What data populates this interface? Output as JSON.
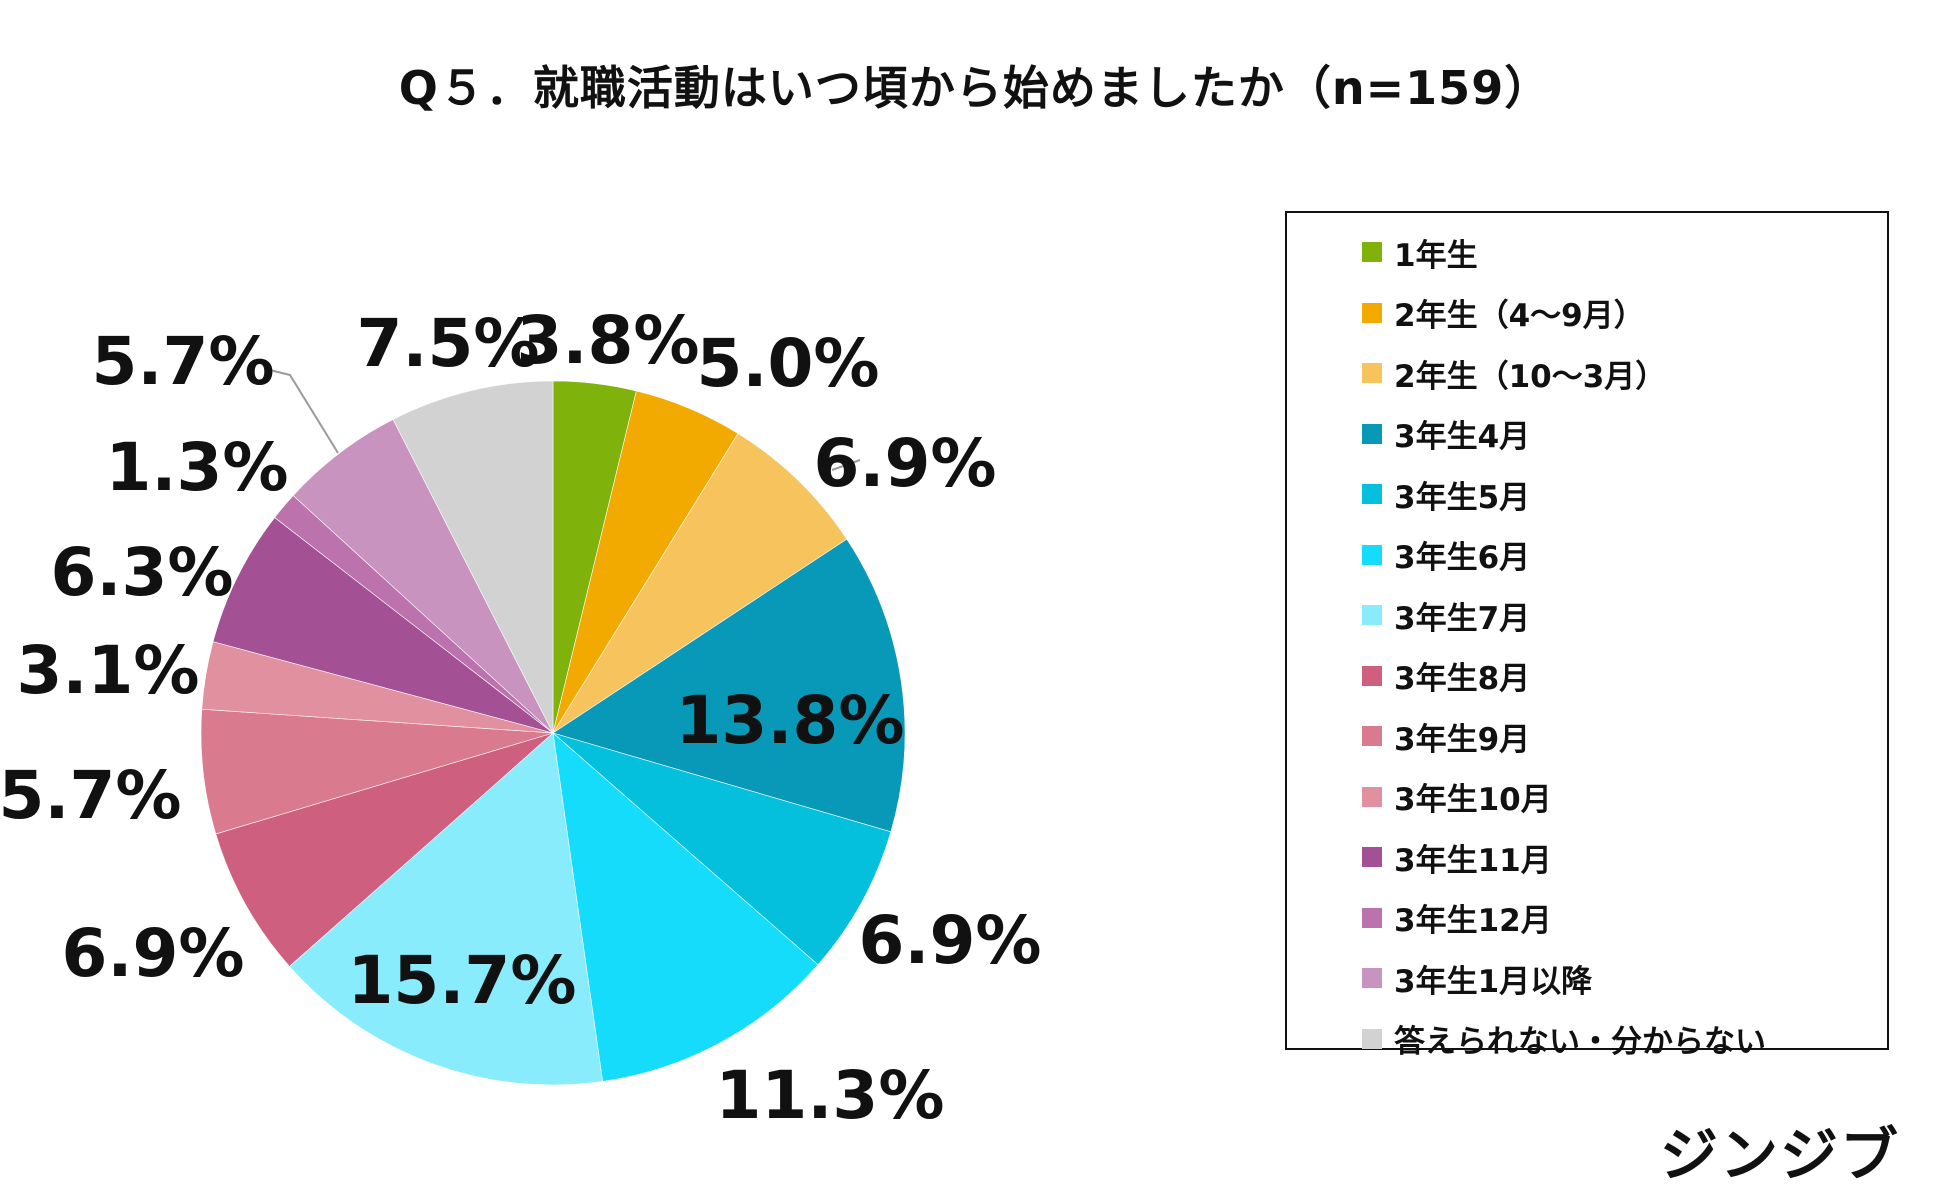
{
  "chart_data": {
    "type": "pie",
    "title": "Q５．就職活動はいつ頃から始めましたか（n=159）",
    "categories": [
      "1年生",
      "2年生（4〜9月）",
      "2年生（10〜3月）",
      "3年生4月",
      "3年生5月",
      "3年生6月",
      "3年生7月",
      "3年生8月",
      "3年生9月",
      "3年生10月",
      "3年生11月",
      "3年生12月",
      "3年生1月以降",
      "答えられない・分からない"
    ],
    "values": [
      3.8,
      5.0,
      6.9,
      13.8,
      6.9,
      11.3,
      15.7,
      6.9,
      5.7,
      3.1,
      6.3,
      1.3,
      5.7,
      7.5
    ],
    "value_labels": [
      "3.8%",
      "5.0%",
      "6.9%",
      "13.8%",
      "6.9%",
      "11.3%",
      "15.7%",
      "6.9%",
      "5.7%",
      "3.1%",
      "6.3%",
      "1.3%",
      "5.7%",
      "7.5%"
    ],
    "colors": [
      "#7fb20a",
      "#f2a900",
      "#f6c35c",
      "#0899b8",
      "#04c0dc",
      "#14dcfa",
      "#88ecfc",
      "#cf5f7e",
      "#d97a8f",
      "#e0909e",
      "#a45094",
      "#bb72ad",
      "#c893be",
      "#d2d2d2"
    ],
    "legend_position": "right",
    "start_angle": "top, clockwise"
  },
  "brand": "ジンジブ"
}
